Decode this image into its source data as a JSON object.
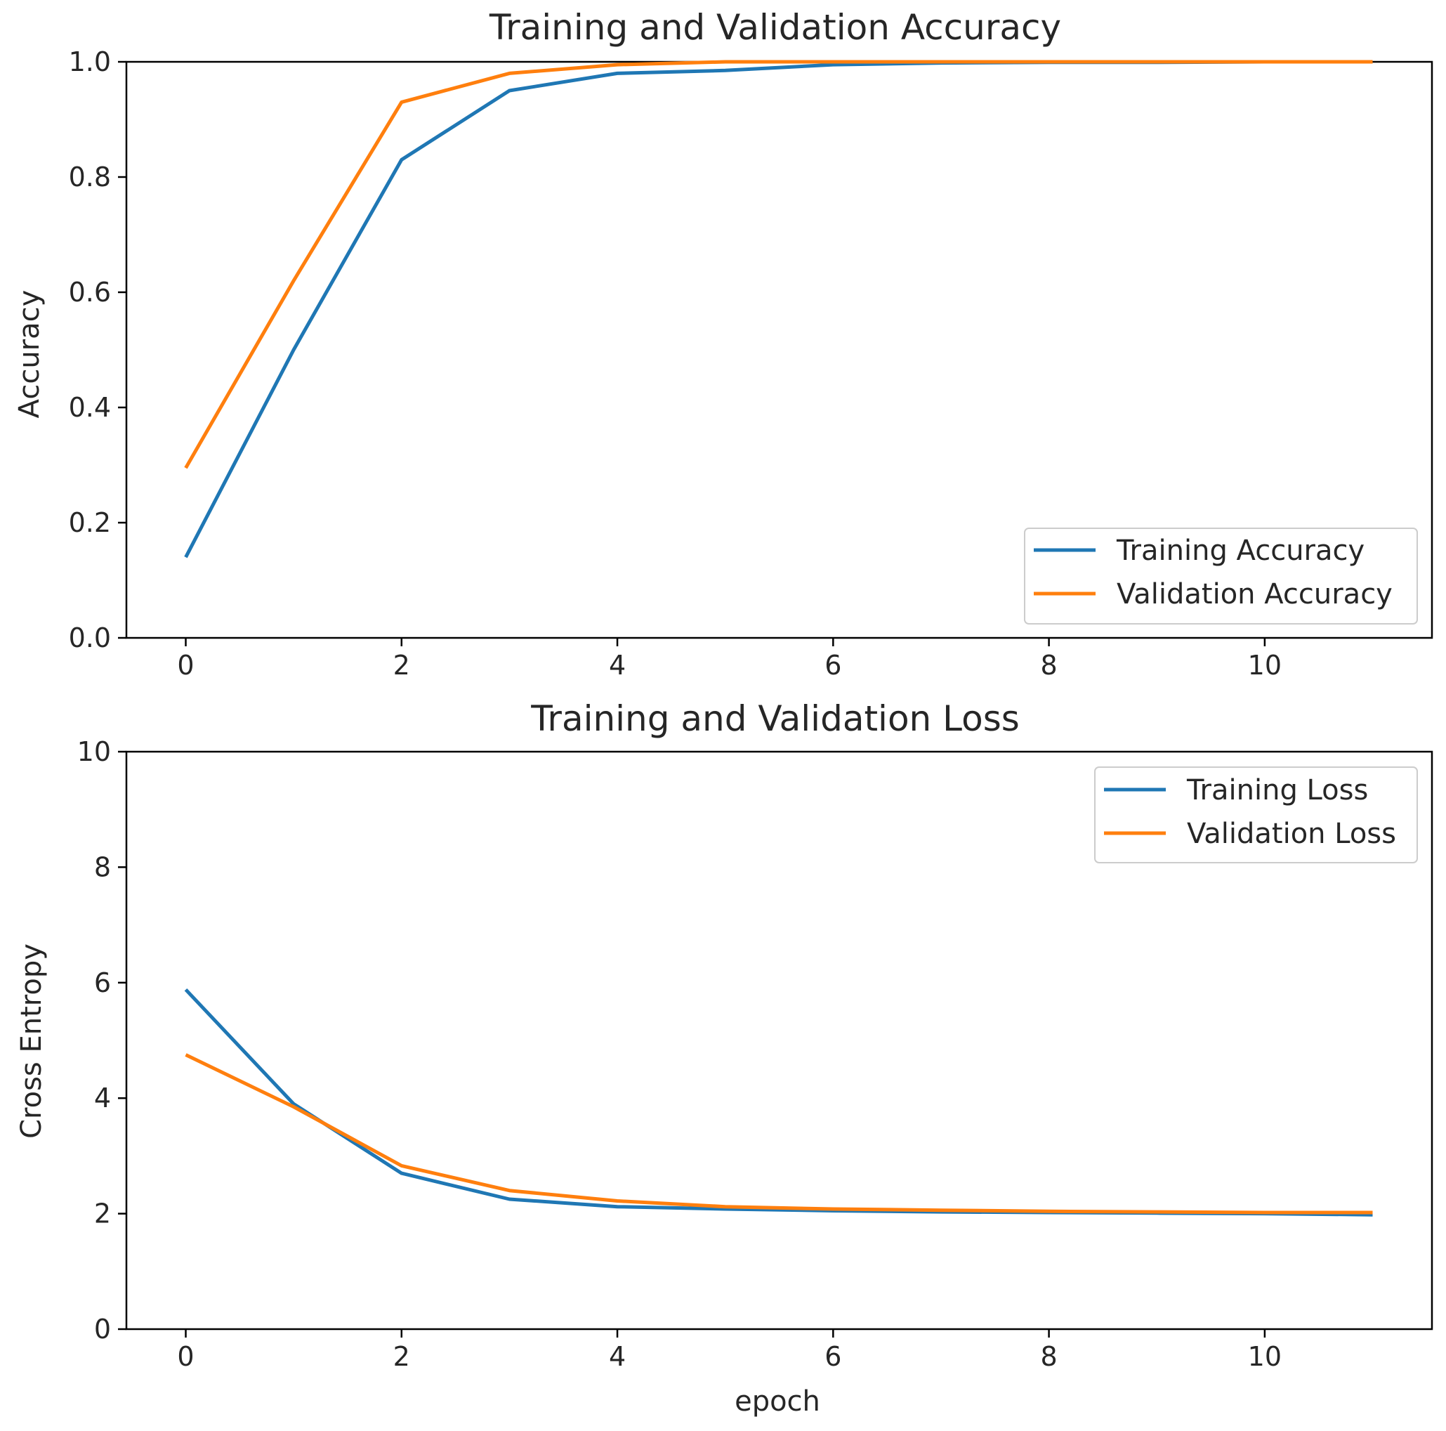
{
  "chart_data": [
    {
      "type": "line",
      "title": "Training and Validation Accuracy",
      "xlabel": "",
      "ylabel": "Accuracy",
      "xlim": [
        -0.55,
        11.55
      ],
      "ylim": [
        0.0,
        1.0
      ],
      "xticks": [
        0,
        2,
        4,
        6,
        8,
        10
      ],
      "yticks": [
        0.0,
        0.2,
        0.4,
        0.6,
        0.8,
        1.0
      ],
      "xtick_labels": [
        "0",
        "2",
        "4",
        "6",
        "8",
        "10"
      ],
      "ytick_labels": [
        "0.0",
        "0.2",
        "0.4",
        "0.6",
        "0.8",
        "1.0"
      ],
      "legend_position": "lower-right",
      "x": [
        0,
        1,
        2,
        3,
        4,
        5,
        6,
        7,
        8,
        9,
        10,
        11
      ],
      "series": [
        {
          "name": "Training Accuracy",
          "color": "#1f77b4",
          "values": [
            0.14,
            0.5,
            0.83,
            0.95,
            0.98,
            0.985,
            0.995,
            0.998,
            0.999,
            0.999,
            1.0,
            1.0
          ]
        },
        {
          "name": "Validation Accuracy",
          "color": "#ff7f0e",
          "values": [
            0.295,
            0.62,
            0.93,
            0.98,
            0.995,
            1.0,
            1.0,
            1.0,
            1.0,
            1.0,
            1.0,
            1.0
          ]
        }
      ]
    },
    {
      "type": "line",
      "title": "Training and Validation Loss",
      "xlabel": "epoch",
      "ylabel": "Cross Entropy",
      "xlim": [
        -0.55,
        11.55
      ],
      "ylim": [
        0,
        10
      ],
      "xticks": [
        0,
        2,
        4,
        6,
        8,
        10
      ],
      "yticks": [
        0,
        2,
        4,
        6,
        8,
        10
      ],
      "xtick_labels": [
        "0",
        "2",
        "4",
        "6",
        "8",
        "10"
      ],
      "ytick_labels": [
        "0",
        "2",
        "4",
        "6",
        "8",
        "10"
      ],
      "legend_position": "upper-right",
      "x": [
        0,
        1,
        2,
        3,
        4,
        5,
        6,
        7,
        8,
        9,
        10,
        11
      ],
      "series": [
        {
          "name": "Training Loss",
          "color": "#1f77b4",
          "values": [
            5.88,
            3.9,
            2.7,
            2.25,
            2.12,
            2.08,
            2.05,
            2.03,
            2.02,
            2.01,
            2.0,
            1.98
          ]
        },
        {
          "name": "Validation Loss",
          "color": "#ff7f0e",
          "values": [
            4.75,
            3.85,
            2.83,
            2.4,
            2.22,
            2.12,
            2.08,
            2.06,
            2.04,
            2.03,
            2.02,
            2.02
          ]
        }
      ]
    }
  ]
}
